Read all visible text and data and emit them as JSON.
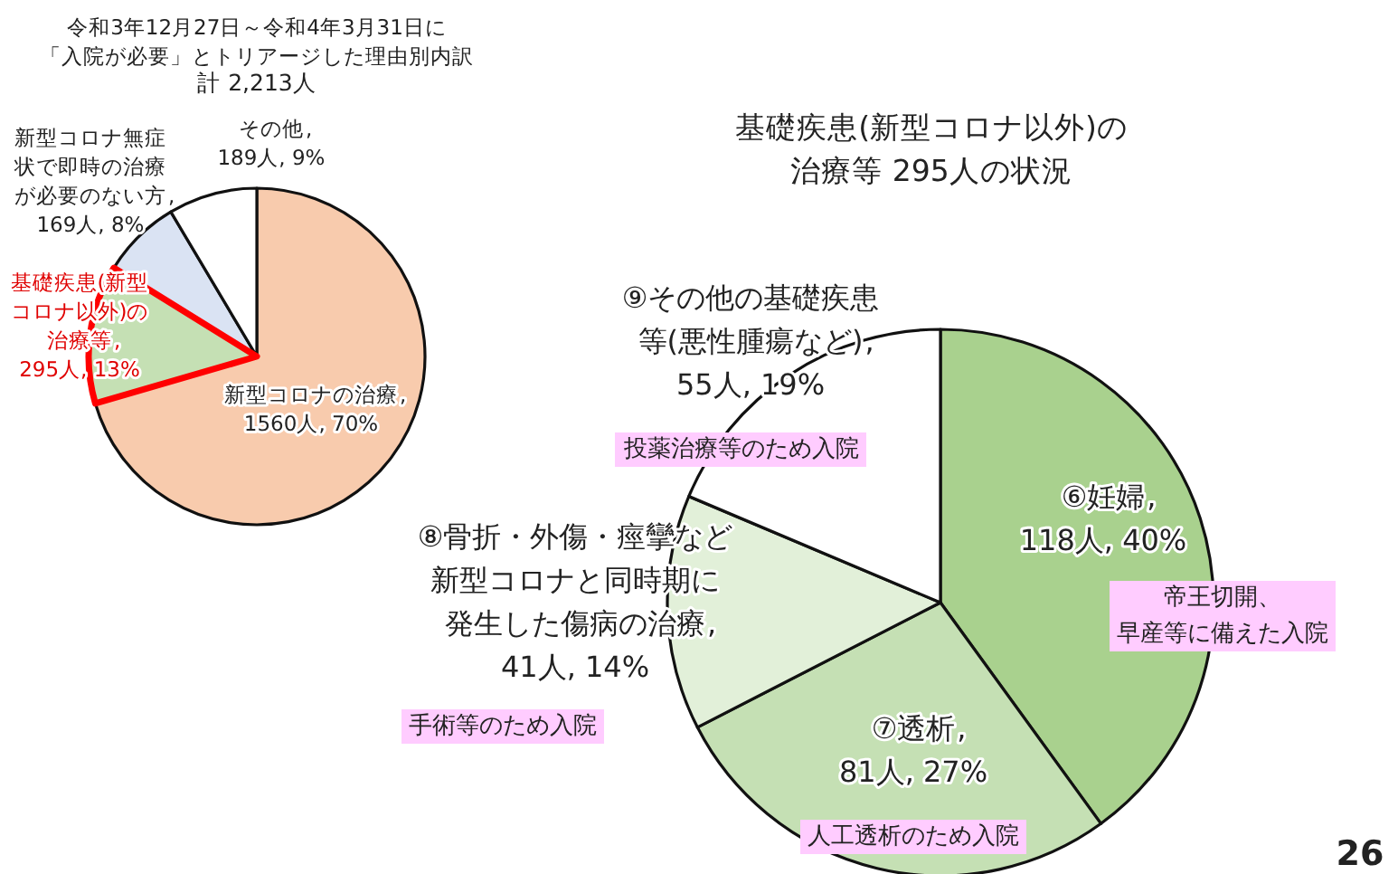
{
  "chart_data": [
    {
      "type": "pie",
      "title": "令和3年12月27日～令和4年3月31日に「入院が必要」とトリアージした理由別内訳",
      "subtitle": "計  2,213人",
      "categories": [
        "新型コロナの治療",
        "基礎疾患(新型コロナ以外)の治療等",
        "新型コロナ無症状で即時の治療が必要のない方",
        "その他"
      ],
      "values": [
        1560,
        295,
        169,
        189
      ],
      "value_labels": [
        ",1560人, 70%",
        ",295人, 13%",
        ",169人, 8%",
        ",189人, 9%"
      ],
      "colors": [
        "#f8cbad",
        "#c5e0b4",
        "#dae3f3",
        "#ffffff"
      ]
    },
    {
      "type": "pie",
      "title": "基礎疾患(新型コロナ以外)の治療等  295人の状況",
      "categories": [
        "⑥妊婦",
        "⑦透析",
        "⑧骨折・外傷・痙攣など新型コロナと同時期に発生した傷病の治療",
        "⑨その他の基礎疾患等(悪性腫瘍など)"
      ],
      "values": [
        118,
        81,
        41,
        55
      ],
      "value_labels": [
        ",118人, 40%",
        ",81人, 27%",
        ",41人, 14%",
        ",55人, 19%"
      ],
      "colors": [
        "#a9d18e",
        "#c5e0b4",
        "#e2f0d9",
        "#ffffff"
      ],
      "annotations": [
        "帝王切開、早産等に備えた入院",
        "人工透析のため入院",
        "手術等のため入院",
        "投薬治療等のため入院",
        "26"
      ]
    }
  ]
}
